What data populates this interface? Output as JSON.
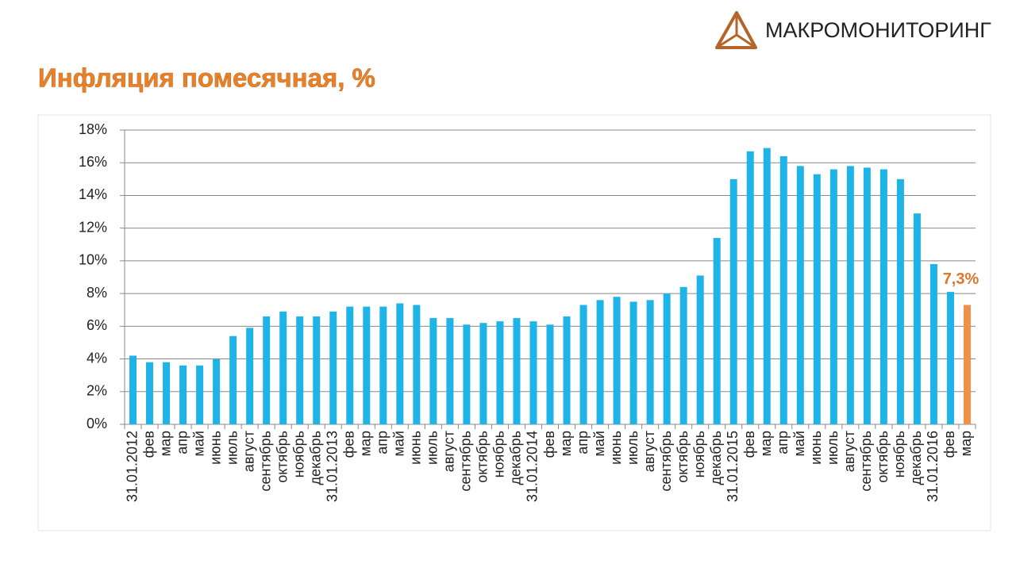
{
  "brand": "МАКРОМОНИТОРИНГ",
  "chart_data": {
    "type": "bar",
    "title": "Инфляция помесячная, %",
    "categories": [
      "31.01.2012",
      "фев",
      "мар",
      "апр",
      "май",
      "июнь",
      "июль",
      "август",
      "сентябрь",
      "октябрь",
      "ноябрь",
      "декабрь",
      "31.01.2013",
      "фев",
      "мар",
      "апр",
      "май",
      "июнь",
      "июль",
      "август",
      "сентябрь",
      "октябрь",
      "ноябрь",
      "декабрь",
      "31.01.2014",
      "фев",
      "мар",
      "апр",
      "май",
      "июнь",
      "июль",
      "август",
      "сентябрь",
      "октябрь",
      "ноябрь",
      "декабрь",
      "31.01.2015",
      "фев",
      "мар",
      "апр",
      "май",
      "июнь",
      "июль",
      "август",
      "сентябрь",
      "октябрь",
      "ноябрь",
      "декабрь",
      "31.01.2016",
      "фев",
      "мар"
    ],
    "values": [
      4.2,
      3.8,
      3.8,
      3.6,
      3.6,
      4.0,
      5.4,
      5.9,
      6.6,
      6.9,
      6.6,
      6.6,
      6.9,
      7.2,
      7.2,
      7.2,
      7.4,
      7.3,
      6.5,
      6.5,
      6.1,
      6.2,
      6.3,
      6.5,
      6.3,
      6.1,
      6.6,
      7.3,
      7.6,
      7.8,
      7.5,
      7.6,
      8.0,
      8.4,
      9.1,
      11.4,
      15.0,
      16.7,
      16.9,
      16.4,
      15.8,
      15.3,
      15.6,
      15.8,
      15.7,
      15.6,
      15.0,
      12.9,
      9.8,
      8.1,
      7.3
    ],
    "value_labels": [
      null,
      null,
      null,
      null,
      null,
      null,
      null,
      null,
      null,
      null,
      null,
      null,
      null,
      null,
      null,
      null,
      null,
      null,
      null,
      null,
      null,
      null,
      null,
      null,
      null,
      null,
      null,
      null,
      null,
      null,
      null,
      null,
      null,
      null,
      null,
      null,
      null,
      null,
      null,
      null,
      null,
      null,
      null,
      null,
      null,
      null,
      null,
      null,
      null,
      null,
      "7,3%"
    ],
    "colors": [
      "#1fb4e8",
      "#1fb4e8",
      "#1fb4e8",
      "#1fb4e8",
      "#1fb4e8",
      "#1fb4e8",
      "#1fb4e8",
      "#1fb4e8",
      "#1fb4e8",
      "#1fb4e8",
      "#1fb4e8",
      "#1fb4e8",
      "#1fb4e8",
      "#1fb4e8",
      "#1fb4e8",
      "#1fb4e8",
      "#1fb4e8",
      "#1fb4e8",
      "#1fb4e8",
      "#1fb4e8",
      "#1fb4e8",
      "#1fb4e8",
      "#1fb4e8",
      "#1fb4e8",
      "#1fb4e8",
      "#1fb4e8",
      "#1fb4e8",
      "#1fb4e8",
      "#1fb4e8",
      "#1fb4e8",
      "#1fb4e8",
      "#1fb4e8",
      "#1fb4e8",
      "#1fb4e8",
      "#1fb4e8",
      "#1fb4e8",
      "#1fb4e8",
      "#1fb4e8",
      "#1fb4e8",
      "#1fb4e8",
      "#1fb4e8",
      "#1fb4e8",
      "#1fb4e8",
      "#1fb4e8",
      "#1fb4e8",
      "#1fb4e8",
      "#1fb4e8",
      "#1fb4e8",
      "#1fb4e8",
      "#1fb4e8",
      "#f0914a"
    ],
    "value_label_color": "#d9782a",
    "ylim": [
      0,
      18
    ],
    "yticks": [
      {
        "value": 0,
        "label": "0%"
      },
      {
        "value": 2,
        "label": "2%"
      },
      {
        "value": 4,
        "label": "4%"
      },
      {
        "value": 6,
        "label": "6%"
      },
      {
        "value": 8,
        "label": "8%"
      },
      {
        "value": 10,
        "label": "10%"
      },
      {
        "value": 12,
        "label": "12%"
      },
      {
        "value": 14,
        "label": "14%"
      },
      {
        "value": 16,
        "label": "16%"
      },
      {
        "value": 18,
        "label": "18%"
      }
    ],
    "grid": true
  }
}
